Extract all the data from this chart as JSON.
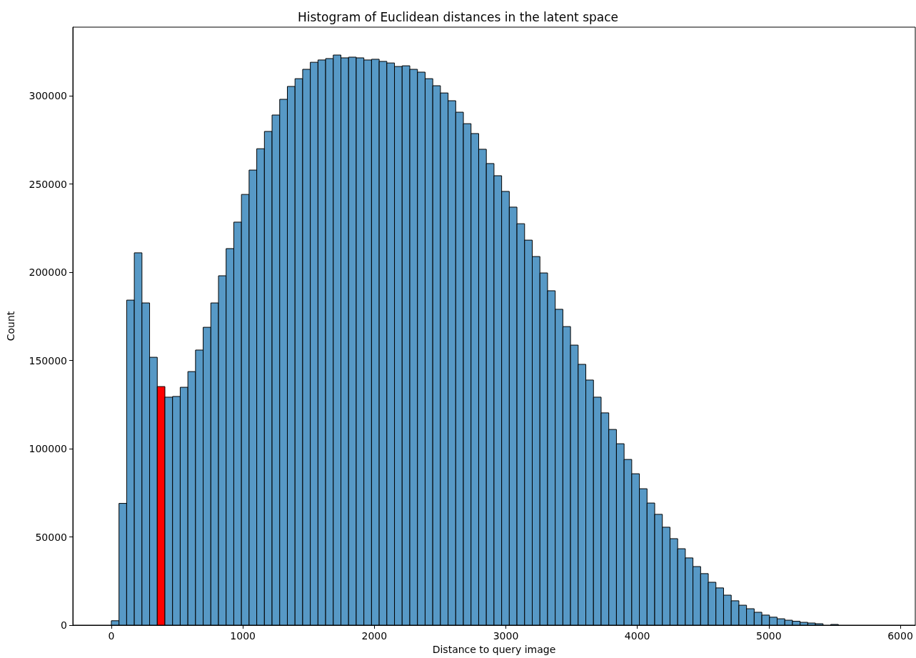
{
  "chart_data": {
    "type": "histogram",
    "title": "Histogram of Euclidean distances in the latent space",
    "xlabel": "Distance to query image",
    "ylabel": "Count",
    "bins": [
      0,
      58.2,
      116.4,
      174.6,
      232.8,
      291,
      349.2,
      407.4,
      465.6,
      523.8,
      582,
      640.2,
      698.4,
      756.6,
      814.8,
      873,
      931.2,
      989.4,
      1047.6,
      1105.8,
      1164,
      1222.2,
      1280.4,
      1338.6,
      1396.8,
      1455,
      1513.2,
      1571.4,
      1629.6,
      1687.8,
      1746,
      1804.2,
      1862.4,
      1920.6,
      1978.8,
      2037,
      2095.2,
      2153.4,
      2211.6,
      2269.8,
      2328,
      2386.2,
      2444.4,
      2502.6,
      2560.8,
      2619,
      2677.2,
      2735.4,
      2793.6,
      2851.8,
      2910,
      2968.2,
      3026.4,
      3084.6,
      3142.8,
      3201,
      3259.2,
      3317.4,
      3375.6,
      3433.8,
      3492,
      3550.2,
      3608.4,
      3666.6,
      3724.8,
      3783,
      3841.2,
      3899.4,
      3957.6,
      4015.8,
      4074,
      4132.2,
      4190.4,
      4248.6,
      4306.8,
      4365,
      4423.2,
      4481.4,
      4539.6,
      4597.8,
      4656,
      4714.2,
      4772.4,
      4830.6,
      4888.8,
      4947,
      5005.2,
      5063.4,
      5121.6,
      5179.8,
      5238,
      5296.2,
      5354.4,
      5412.6,
      5470.8,
      5529,
      5587.2,
      5645.4,
      5703.6
    ],
    "values": [
      2500,
      69000,
      184200,
      211000,
      182600,
      151800,
      135200,
      129200,
      129600,
      134800,
      143700,
      155900,
      168800,
      182600,
      198000,
      213400,
      228400,
      244100,
      257900,
      270000,
      279800,
      289100,
      298000,
      305300,
      309700,
      315000,
      319000,
      320300,
      321100,
      323100,
      321500,
      321900,
      321500,
      320300,
      320700,
      319500,
      318600,
      316600,
      317000,
      315000,
      313400,
      309700,
      305700,
      301600,
      297200,
      290700,
      284200,
      278600,
      269700,
      261600,
      254700,
      245800,
      236900,
      227500,
      218200,
      208900,
      199600,
      189500,
      179000,
      169200,
      158700,
      147800,
      138900,
      129200,
      120300,
      110900,
      102800,
      93900,
      85800,
      77300,
      69200,
      62800,
      55500,
      49000,
      43300,
      38100,
      33200,
      29200,
      24300,
      21100,
      17000,
      13800,
      11300,
      9300,
      7300,
      5700,
      4500,
      3600,
      2800,
      2200,
      1600,
      1200,
      800,
      null,
      400,
      null,
      null,
      null
    ],
    "colors": [
      "#5799c6",
      "#5799c6",
      "#5799c6",
      "#5799c6",
      "#5799c6",
      "#5799c6",
      "#ff0000",
      "#5799c6",
      "#5799c6",
      "#5799c6",
      "#5799c6",
      "#5799c6",
      "#5799c6",
      "#5799c6",
      "#5799c6",
      "#5799c6",
      "#5799c6",
      "#5799c6",
      "#5799c6",
      "#5799c6",
      "#5799c6",
      "#5799c6",
      "#5799c6",
      "#5799c6",
      "#5799c6",
      "#5799c6",
      "#5799c6",
      "#5799c6",
      "#5799c6",
      "#5799c6",
      "#5799c6",
      "#5799c6",
      "#5799c6",
      "#5799c6",
      "#5799c6",
      "#5799c6",
      "#5799c6",
      "#5799c6",
      "#5799c6",
      "#5799c6",
      "#5799c6",
      "#5799c6",
      "#5799c6",
      "#5799c6",
      "#5799c6",
      "#5799c6",
      "#5799c6",
      "#5799c6",
      "#5799c6",
      "#5799c6",
      "#5799c6",
      "#5799c6",
      "#5799c6",
      "#5799c6",
      "#5799c6",
      "#5799c6",
      "#5799c6",
      "#5799c6",
      "#5799c6",
      "#5799c6",
      "#5799c6",
      "#5799c6",
      "#5799c6",
      "#5799c6",
      "#5799c6",
      "#5799c6",
      "#5799c6",
      "#5799c6",
      "#5799c6",
      "#5799c6",
      "#5799c6",
      "#5799c6",
      "#5799c6",
      "#5799c6",
      "#5799c6",
      "#5799c6",
      "#5799c6",
      "#5799c6",
      "#5799c6",
      "#5799c6",
      "#5799c6",
      "#5799c6",
      "#5799c6",
      "#5799c6",
      "#5799c6",
      "#5799c6",
      "#5799c6",
      "#5799c6",
      "#5799c6",
      "#5799c6",
      "#5799c6",
      "#5799c6",
      "#5799c6",
      "#5799c6",
      "#5799c6",
      "#5799c6",
      "#5799c6",
      "#5799c6"
    ],
    "xlim": [
      -293,
      6114
    ],
    "xticks": [
      0,
      1000,
      2000,
      3000,
      4000,
      5000,
      6000
    ],
    "ylim": [
      0,
      338900
    ],
    "yticks": [
      0,
      50000,
      100000,
      150000,
      200000,
      250000,
      300000
    ],
    "grid": false
  }
}
